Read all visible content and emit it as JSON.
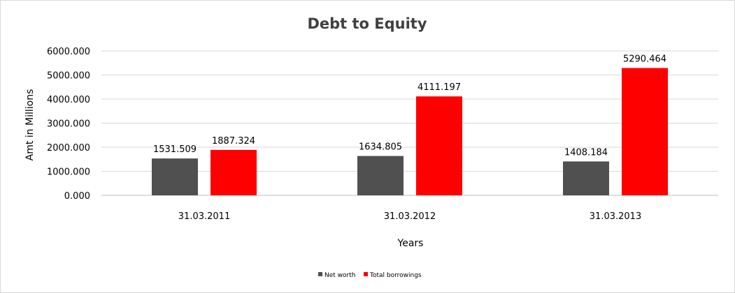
{
  "chart_data": {
    "type": "bar",
    "title": "Debt to Equity",
    "xlabel": "Years",
    "ylabel": "Amt in Millions",
    "categories": [
      "31.03.2011",
      "31.03.2012",
      "31.03.2013"
    ],
    "series": [
      {
        "name": "Net worth",
        "values": [
          1531.509,
          1634.805,
          1408.184
        ],
        "color": "#505050"
      },
      {
        "name": "Total borrowings",
        "values": [
          1887.324,
          4111.197,
          5290.464
        ],
        "color": "#ff0000"
      }
    ],
    "ylim": [
      0,
      6000
    ],
    "yticks": [
      "0.000",
      "1000.000",
      "2000.000",
      "3000.000",
      "4000.000",
      "5000.000",
      "6000.000"
    ],
    "data_labels": [
      [
        "1531.509",
        "1634.805",
        "1408.184"
      ],
      [
        "1887.324",
        "4111.197",
        "5290.464"
      ]
    ],
    "grid": true,
    "legend_position": "bottom"
  }
}
